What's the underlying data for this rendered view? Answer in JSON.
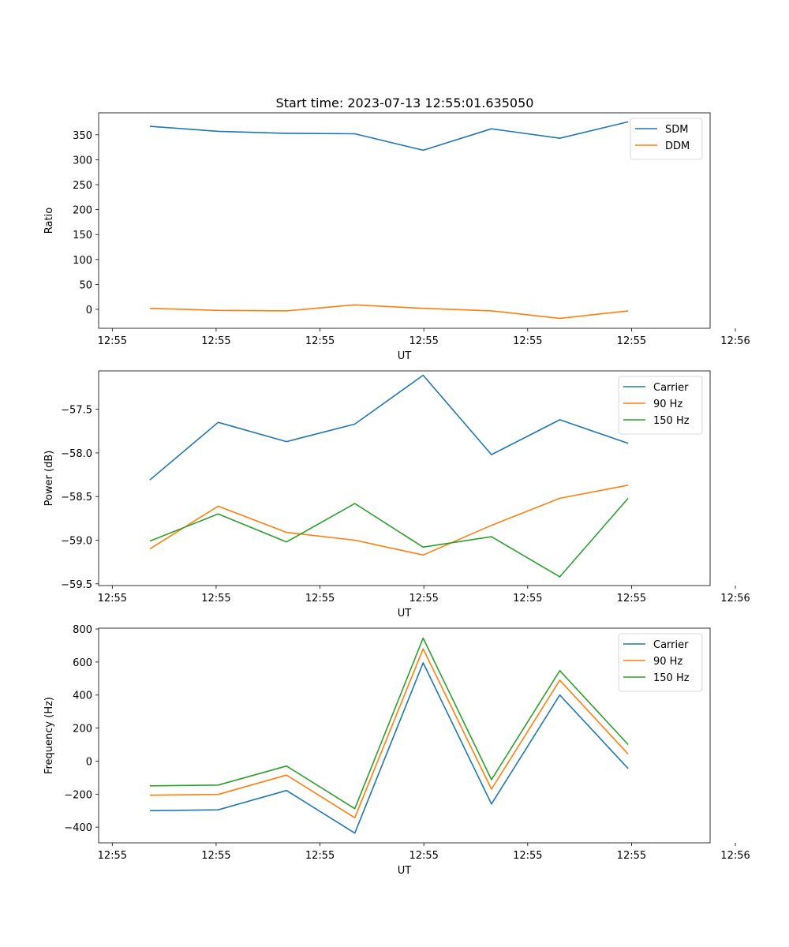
{
  "figure_title": "Start time: 2023-07-13 12:55:01.635050",
  "chart_data": [
    {
      "type": "line",
      "title": "Start time: 2023-07-13 12:55:01.635050",
      "xlabel": "UT",
      "ylabel": "Ratio",
      "x": [
        1,
        2,
        3,
        4,
        5,
        6,
        7,
        8
      ],
      "xlim": [
        0.25,
        9.2
      ],
      "xticks": [
        0.45,
        1.97,
        3.49,
        5.01,
        6.53,
        8.05,
        9.57
      ],
      "xtick_labels": [
        "12:55",
        "12:55",
        "12:55",
        "12:55",
        "12:55",
        "12:55",
        "12:56"
      ],
      "ylim": [
        -38,
        394
      ],
      "yticks": [
        0,
        50,
        100,
        150,
        200,
        250,
        300,
        350
      ],
      "ytick_labels": [
        "0",
        "50",
        "100",
        "150",
        "200",
        "250",
        "300",
        "350"
      ],
      "legend": "top-right",
      "series": [
        {
          "name": "SDM",
          "color": "#1f77b4",
          "values": [
            367,
            357,
            353,
            352,
            319,
            362,
            343,
            376
          ]
        },
        {
          "name": "DDM",
          "color": "#ff7f0e",
          "values": [
            2,
            -2,
            -3,
            9,
            2,
            -3,
            -18,
            -3
          ]
        }
      ]
    },
    {
      "type": "line",
      "title": "",
      "xlabel": "UT",
      "ylabel": "Power (dB)",
      "x": [
        1,
        2,
        3,
        4,
        5,
        6,
        7,
        8
      ],
      "xlim": [
        0.25,
        9.2
      ],
      "xticks": [
        0.45,
        1.97,
        3.49,
        5.01,
        6.53,
        8.05,
        9.57
      ],
      "xtick_labels": [
        "12:55",
        "12:55",
        "12:55",
        "12:55",
        "12:55",
        "12:55",
        "12:56"
      ],
      "ylim": [
        -59.52,
        -57.06
      ],
      "yticks": [
        -59.5,
        -59.0,
        -58.5,
        -58.0,
        -57.5
      ],
      "ytick_labels": [
        "−59.5",
        "−59.0",
        "−58.5",
        "−58.0",
        "−57.5"
      ],
      "legend": "top-right",
      "series": [
        {
          "name": "Carrier",
          "color": "#1f77b4",
          "values": [
            -58.31,
            -57.65,
            -57.87,
            -57.67,
            -57.11,
            -58.02,
            -57.62,
            -57.89
          ]
        },
        {
          "name": "90 Hz",
          "color": "#ff7f0e",
          "values": [
            -59.1,
            -58.61,
            -58.91,
            -59.0,
            -59.17,
            -58.83,
            -58.52,
            -58.37
          ]
        },
        {
          "name": "150 Hz",
          "color": "#2ca02c",
          "values": [
            -59.01,
            -58.7,
            -59.02,
            -58.58,
            -59.08,
            -58.96,
            -59.42,
            -58.52
          ]
        }
      ]
    },
    {
      "type": "line",
      "title": "",
      "xlabel": "UT",
      "ylabel": "Frequency (Hz)",
      "x": [
        1,
        2,
        3,
        4,
        5,
        6,
        7,
        8
      ],
      "xlim": [
        0.25,
        9.2
      ],
      "xticks": [
        0.45,
        1.97,
        3.49,
        5.01,
        6.53,
        8.05,
        9.57
      ],
      "xtick_labels": [
        "12:55",
        "12:55",
        "12:55",
        "12:55",
        "12:55",
        "12:55",
        "12:56"
      ],
      "ylim": [
        -495,
        805
      ],
      "yticks": [
        -400,
        -200,
        0,
        200,
        400,
        600,
        800
      ],
      "ytick_labels": [
        "−400",
        "−200",
        "0",
        "200",
        "400",
        "600",
        "800"
      ],
      "legend": "top-right",
      "series": [
        {
          "name": "Carrier",
          "color": "#1f77b4",
          "values": [
            -300,
            -295,
            -178,
            -436,
            595,
            -260,
            400,
            -45
          ]
        },
        {
          "name": "90 Hz",
          "color": "#ff7f0e",
          "values": [
            -207,
            -202,
            -85,
            -343,
            680,
            -170,
            490,
            42
          ]
        },
        {
          "name": "150 Hz",
          "color": "#2ca02c",
          "values": [
            -150,
            -145,
            -30,
            -288,
            745,
            -112,
            548,
            100
          ]
        }
      ]
    }
  ]
}
